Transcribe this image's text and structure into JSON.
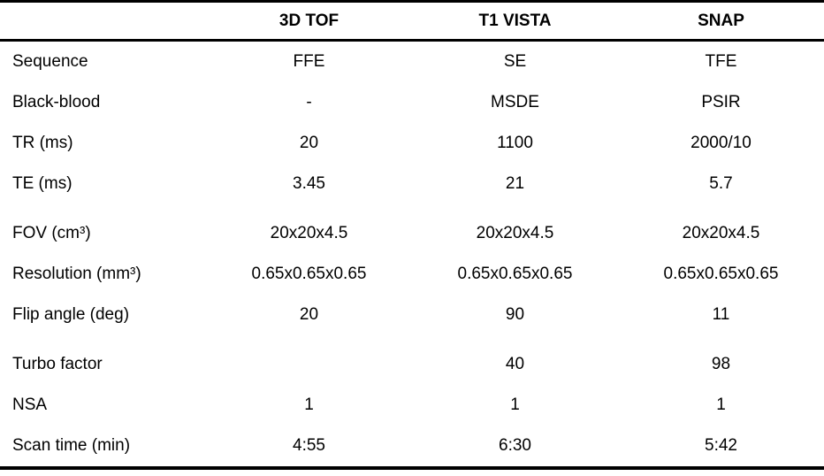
{
  "table": {
    "columns": [
      "",
      "3D TOF",
      "T1 VISTA",
      "SNAP"
    ],
    "rows": [
      {
        "label": "Sequence",
        "values": [
          "FFE",
          "SE",
          "TFE"
        ]
      },
      {
        "label": "Black-blood",
        "values": [
          "-",
          "MSDE",
          "PSIR"
        ]
      },
      {
        "label": "TR (ms)",
        "values": [
          "20",
          "1100",
          "2000/10"
        ]
      },
      {
        "label": "TE (ms)",
        "values": [
          "3.45",
          "21",
          "5.7"
        ]
      },
      {
        "label": "FOV (cm³)",
        "values": [
          "20x20x4.5",
          "20x20x4.5",
          "20x20x4.5"
        ]
      },
      {
        "label": "Resolution (mm³)",
        "values": [
          "0.65x0.65x0.65",
          "0.65x0.65x0.65",
          "0.65x0.65x0.65"
        ]
      },
      {
        "label": "Flip angle (deg)",
        "values": [
          "20",
          "90",
          "11"
        ]
      },
      {
        "label": "Turbo factor",
        "values": [
          "",
          "40",
          "98"
        ]
      },
      {
        "label": "NSA",
        "values": [
          "1",
          "1",
          "1"
        ]
      },
      {
        "label": "Scan time (min)",
        "values": [
          "4:55",
          "6:30",
          "5:42"
        ]
      }
    ]
  }
}
